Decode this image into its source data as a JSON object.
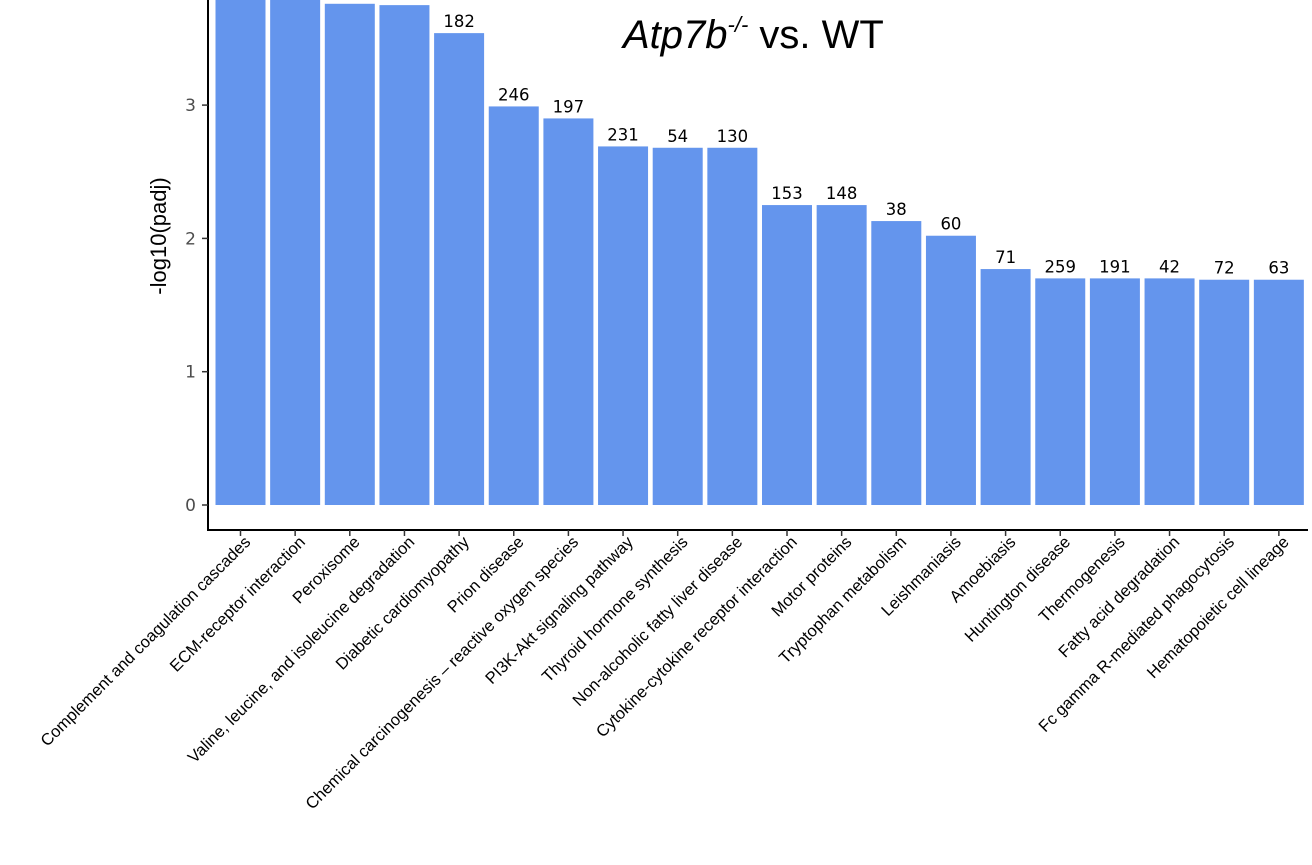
{
  "chart_data": {
    "type": "bar",
    "title": {
      "gene": "Atp7b",
      "superscript": "-/-",
      "rest": " vs. WT"
    },
    "xlabel": "",
    "ylabel": "-log10(padj)",
    "ylim": [
      0,
      3.8
    ],
    "yticks": [
      0,
      1,
      2,
      3
    ],
    "grid": false,
    "bar_color": "#6495ED",
    "categories": [
      "Complement and coagulation cascades",
      "ECM-receptor interaction",
      "Peroxisome",
      "Valine, leucine, and isoleucine degradation",
      "Diabetic cardiomyopathy",
      "Prion disease",
      "Chemical carcinogenesis – reactive oxygen species",
      "PI3K-Akt signaling pathway",
      "Thyroid hormone synthesis",
      "Non-alcoholic fatty liver disease",
      "Cytokine-cytokine receptor interaction",
      "Motor proteins",
      "Tryptophan metabolism",
      "Leishmaniasis",
      "Amoebiasis",
      "Huntington disease",
      "Thermogenesis",
      "Fatty acid degradation",
      "Fc gamma R-mediated phagocytosis",
      "Hematopoietic cell lineage"
    ],
    "values": [
      3.85,
      3.85,
      3.76,
      3.75,
      3.54,
      2.99,
      2.9,
      2.69,
      2.68,
      2.68,
      2.25,
      2.25,
      2.13,
      2.02,
      1.77,
      1.7,
      1.7,
      1.7,
      1.69,
      1.69
    ],
    "labels": [
      "",
      "",
      "",
      "",
      "182",
      "246",
      "197",
      "231",
      "54",
      "130",
      "153",
      "148",
      "38",
      "60",
      "71",
      "259",
      "191",
      "42",
      "72",
      "63"
    ]
  }
}
